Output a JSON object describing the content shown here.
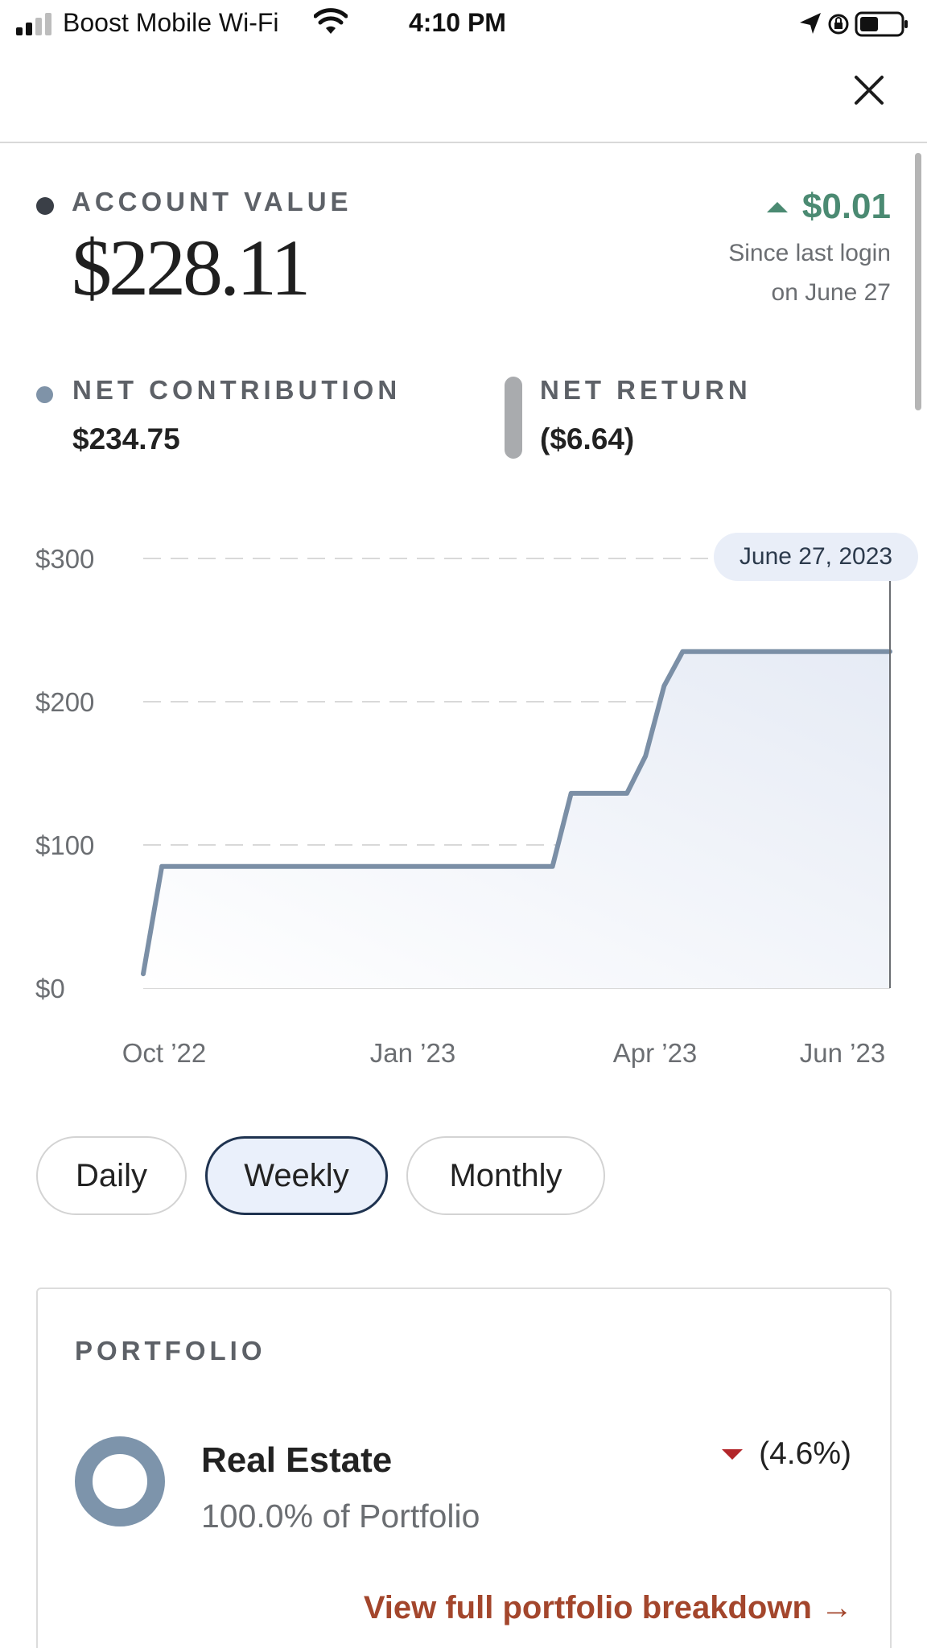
{
  "status_bar": {
    "carrier": "Boost Mobile Wi-Fi",
    "time": "4:10 PM",
    "icons": [
      "signal-icon",
      "wifi-icon",
      "location-arrow-icon",
      "orientation-lock-icon",
      "battery-icon"
    ]
  },
  "header": {
    "close_icon": "close-icon"
  },
  "account": {
    "label": "ACCOUNT VALUE",
    "value": "$228.11",
    "change": "$0.01",
    "change_direction": "up",
    "change_note_line1": "Since last login",
    "change_note_line2": "on June 27"
  },
  "net_contribution": {
    "label": "NET CONTRIBUTION",
    "value": "$234.75"
  },
  "net_return": {
    "label": "NET RETURN",
    "value": "($6.64)"
  },
  "chart_data": {
    "type": "area",
    "y_tick_labels": [
      "$300",
      "$200",
      "$100",
      "$0"
    ],
    "x_tick_labels": [
      "Oct ’22",
      "Jan ’23",
      "Apr ’23",
      "Jun ’23"
    ],
    "ylim": [
      0,
      300
    ],
    "grid": "dashed horizontal",
    "tooltip": "June 27, 2023",
    "series": [
      {
        "x": [
          "2022-09-19",
          "2022-09-26",
          "2023-02-20",
          "2023-02-27",
          "2023-03-20",
          "2023-03-27",
          "2023-04-03",
          "2023-04-10",
          "2023-06-27"
        ],
        "y": [
          10,
          85,
          85,
          136,
          136,
          162,
          211,
          235,
          235
        ]
      }
    ],
    "colors": {
      "line": "#7b8fa6",
      "fill": "#e6ebf5",
      "grid": "#d9d9d9"
    }
  },
  "frequency": {
    "options": [
      "Daily",
      "Weekly",
      "Monthly"
    ],
    "selected": "Weekly"
  },
  "portfolio": {
    "label": "PORTFOLIO",
    "holding_name": "Real Estate",
    "holding_share": "100.0% of Portfolio",
    "holding_change": "(4.6%)",
    "holding_change_direction": "down",
    "link": "View full portfolio breakdown →"
  },
  "colors": {
    "accent_green": "#4b8a72",
    "accent_red": "#b3262a",
    "link": "#a3462c",
    "ring": "#7d94ab"
  }
}
